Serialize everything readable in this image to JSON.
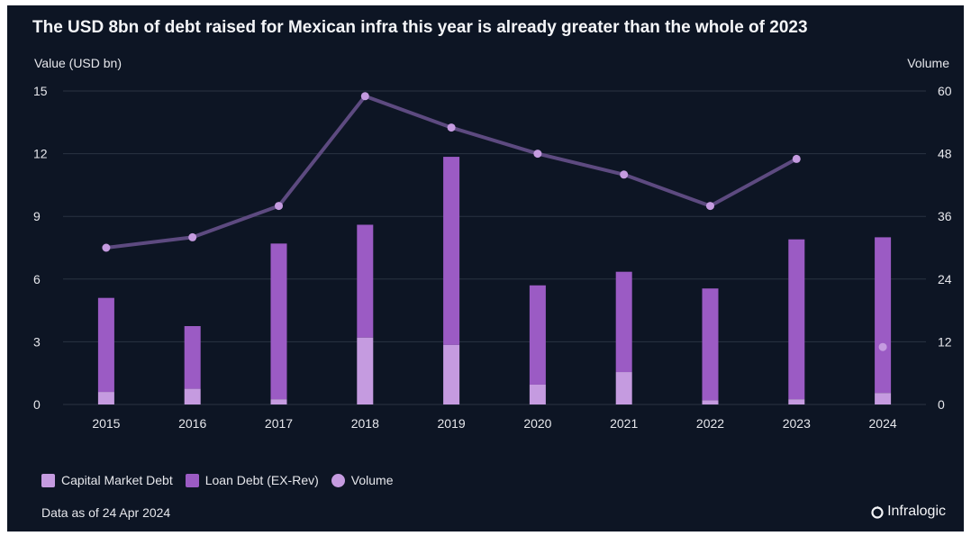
{
  "title": "The USD 8bn of debt raised for Mexican infra this year is already greater than the whole of 2023",
  "footnote": "Data as of 24 Apr 2024",
  "brand": "Infralogic",
  "colors": {
    "background": "#0d1524",
    "capital_market": "#c59be0",
    "loan_debt": "#9b5bc4",
    "volume_line": "#5d4a80",
    "volume_point": "#c59be0",
    "grid": "#2a3342"
  },
  "chart_data": {
    "type": "bar",
    "title": "The USD 8bn of debt raised for Mexican infra this year is already greater than the whole of 2023",
    "ylabel": "Value (USD bn)",
    "y2label": "Volume",
    "categories": [
      "2015",
      "2016",
      "2017",
      "2018",
      "2019",
      "2020",
      "2021",
      "2022",
      "2023",
      "2024"
    ],
    "ylim": [
      0,
      15
    ],
    "yticks": [
      "0",
      "3",
      "6",
      "9",
      "12",
      "15"
    ],
    "y2lim": [
      0,
      60
    ],
    "y2ticks": [
      "0",
      "12",
      "24",
      "36",
      "48",
      "60"
    ],
    "stacked": true,
    "grid": true,
    "legend_position": "bottom-left",
    "series": [
      {
        "name": "Capital Market Debt",
        "axis": "left",
        "kind": "bar",
        "values": [
          0.6,
          0.75,
          0.25,
          3.2,
          2.85,
          0.95,
          1.55,
          0.2,
          0.25,
          0.55
        ]
      },
      {
        "name": "Loan Debt (EX-Rev)",
        "axis": "left",
        "kind": "bar",
        "values": [
          4.5,
          3.0,
          7.45,
          5.4,
          9.0,
          4.75,
          4.8,
          5.35,
          7.65,
          7.45
        ]
      },
      {
        "name": "Volume",
        "axis": "right",
        "kind": "line",
        "values": [
          30,
          32,
          38,
          59,
          53,
          48,
          44,
          38,
          47,
          11
        ]
      }
    ]
  }
}
